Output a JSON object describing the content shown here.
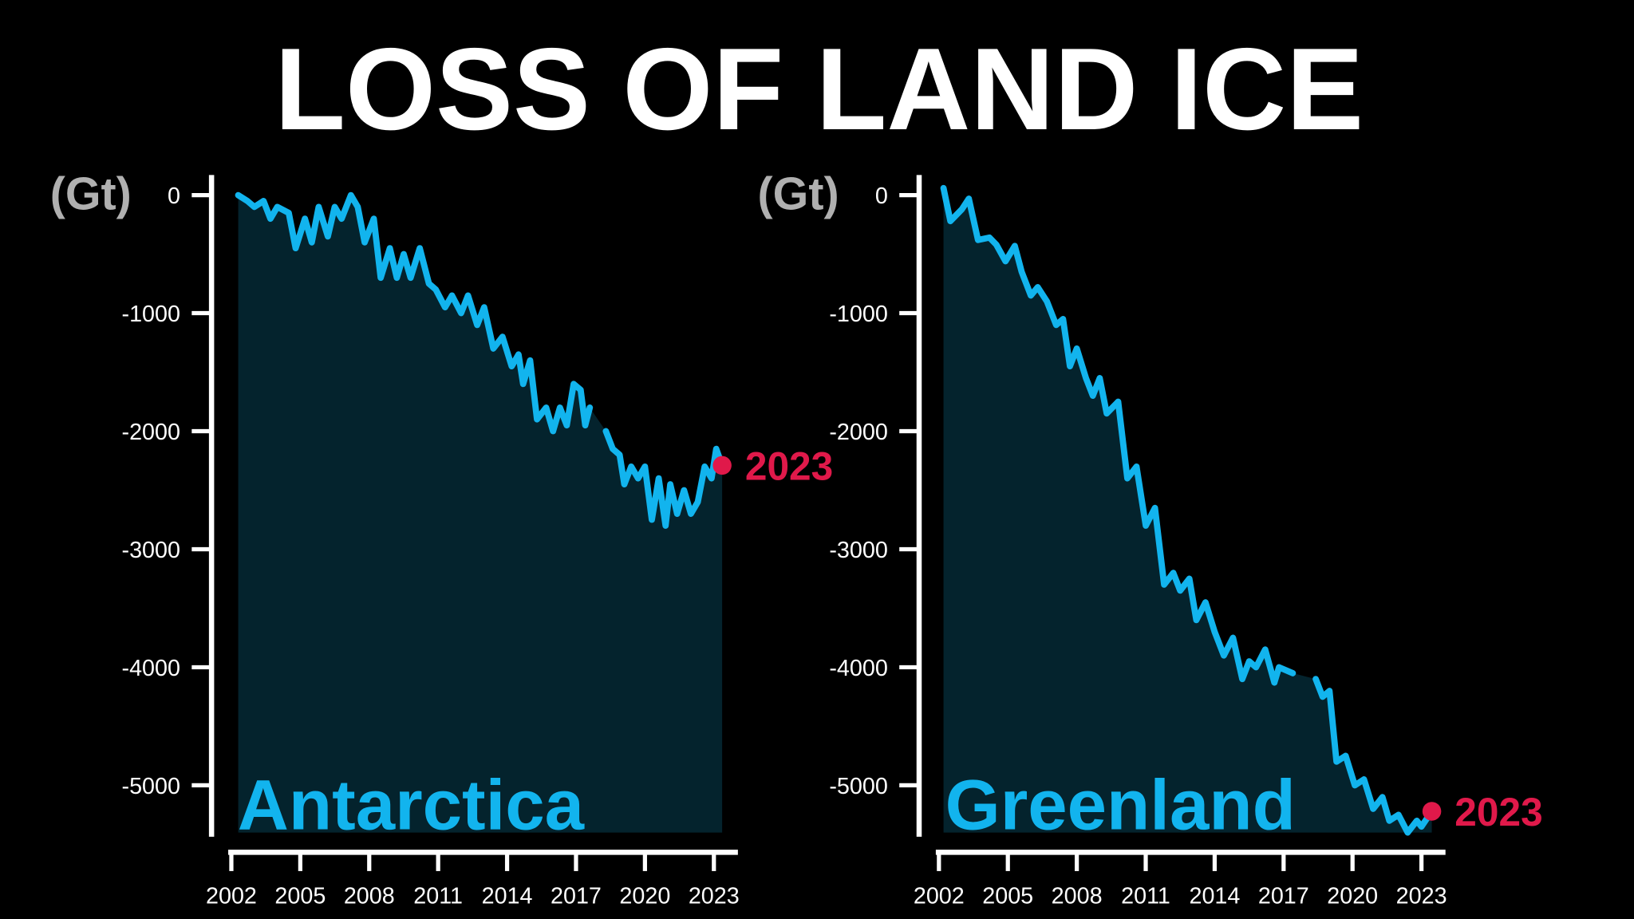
{
  "title": "LOSS OF LAND ICE",
  "chart_data": [
    {
      "type": "line",
      "region": "Antarctica",
      "y_unit": "(Gt)",
      "end_label": "2023",
      "color": "#12b4ee",
      "end_color": "#e0194a",
      "xlim": [
        2002,
        2024
      ],
      "ylim": [
        -5400,
        170
      ],
      "xticks": [
        2002,
        2005,
        2008,
        2011,
        2014,
        2017,
        2020,
        2023
      ],
      "yticks": [
        0,
        -1000,
        -2000,
        -3000,
        -4000,
        -5000
      ],
      "x": [
        2002.3,
        2002.7,
        2003.0,
        2003.4,
        2003.7,
        2004.0,
        2004.5,
        2004.8,
        2005.2,
        2005.5,
        2005.8,
        2006.2,
        2006.5,
        2006.8,
        2007.2,
        2007.5,
        2007.8,
        2008.2,
        2008.5,
        2008.9,
        2009.2,
        2009.5,
        2009.8,
        2010.2,
        2010.6,
        2010.9,
        2011.3,
        2011.6,
        2012.0,
        2012.3,
        2012.7,
        2013.0,
        2013.4,
        2013.8,
        2014.2,
        2014.5,
        2014.7,
        2015.0,
        2015.3,
        2015.7,
        2016.0,
        2016.3,
        2016.6,
        2016.9,
        2017.2,
        2017.4,
        2017.6,
        2018.0,
        2018.3,
        2018.6,
        2018.9,
        2019.1,
        2019.4,
        2019.7,
        2020.0,
        2020.3,
        2020.6,
        2020.9,
        2021.1,
        2021.4,
        2021.7,
        2022.0,
        2022.3,
        2022.6,
        2022.9,
        2023.1,
        2023.36
      ],
      "values": [
        0,
        -50,
        -100,
        -50,
        -200,
        -100,
        -150,
        -450,
        -200,
        -400,
        -100,
        -350,
        -100,
        -200,
        0,
        -100,
        -400,
        -200,
        -700,
        -450,
        -700,
        -500,
        -700,
        -450,
        -750,
        -800,
        -950,
        -850,
        -1000,
        -850,
        -1100,
        -950,
        -1300,
        -1200,
        -1450,
        -1350,
        -1600,
        -1400,
        -1900,
        -1800,
        -2000,
        -1800,
        -1950,
        -1600,
        -1650,
        -1950,
        -1800,
        null,
        -2000,
        -2150,
        -2200,
        -2450,
        -2300,
        -2400,
        -2300,
        -2750,
        -2400,
        -2800,
        -2450,
        -2700,
        -2500,
        -2700,
        -2600,
        -2300,
        -2400,
        -2150,
        -2290
      ]
    },
    {
      "type": "line",
      "region": "Greenland",
      "y_unit": "(Gt)",
      "end_label": "2023",
      "color": "#12b4ee",
      "end_color": "#e0194a",
      "xlim": [
        2002,
        2024
      ],
      "ylim": [
        -5400,
        170
      ],
      "xticks": [
        2002,
        2005,
        2008,
        2011,
        2014,
        2017,
        2020,
        2023
      ],
      "yticks": [
        0,
        -1000,
        -2000,
        -3000,
        -4000,
        -5000
      ],
      "x": [
        2002.2,
        2002.5,
        2003.0,
        2003.3,
        2003.7,
        2004.2,
        2004.5,
        2004.9,
        2005.3,
        2005.6,
        2006.0,
        2006.3,
        2006.7,
        2007.1,
        2007.4,
        2007.7,
        2008.0,
        2008.4,
        2008.7,
        2009.0,
        2009.3,
        2009.8,
        2010.2,
        2010.6,
        2011.0,
        2011.4,
        2011.8,
        2012.2,
        2012.5,
        2012.9,
        2013.2,
        2013.6,
        2014.0,
        2014.4,
        2014.8,
        2015.2,
        2015.5,
        2015.8,
        2016.2,
        2016.6,
        2016.8,
        2017.4,
        2017.9,
        2018.4,
        2018.7,
        2019.0,
        2019.3,
        2019.7,
        2020.1,
        2020.5,
        2020.9,
        2021.3,
        2021.6,
        2022.0,
        2022.4,
        2022.8,
        2023.0,
        2023.45
      ],
      "values": [
        60,
        -220,
        -120,
        -30,
        -380,
        -360,
        -420,
        -560,
        -430,
        -650,
        -850,
        -780,
        -900,
        -1100,
        -1050,
        -1450,
        -1300,
        -1550,
        -1700,
        -1550,
        -1850,
        -1750,
        -2400,
        -2300,
        -2800,
        -2650,
        -3300,
        -3200,
        -3350,
        -3250,
        -3600,
        -3450,
        -3700,
        -3900,
        -3750,
        -4100,
        -3950,
        -4000,
        -3850,
        -4130,
        -4000,
        -4050,
        null,
        -4100,
        -4250,
        -4200,
        -4800,
        -4750,
        -5000,
        -4950,
        -5200,
        -5100,
        -5300,
        -5250,
        -5400,
        -5300,
        -5350,
        -5220
      ]
    }
  ]
}
